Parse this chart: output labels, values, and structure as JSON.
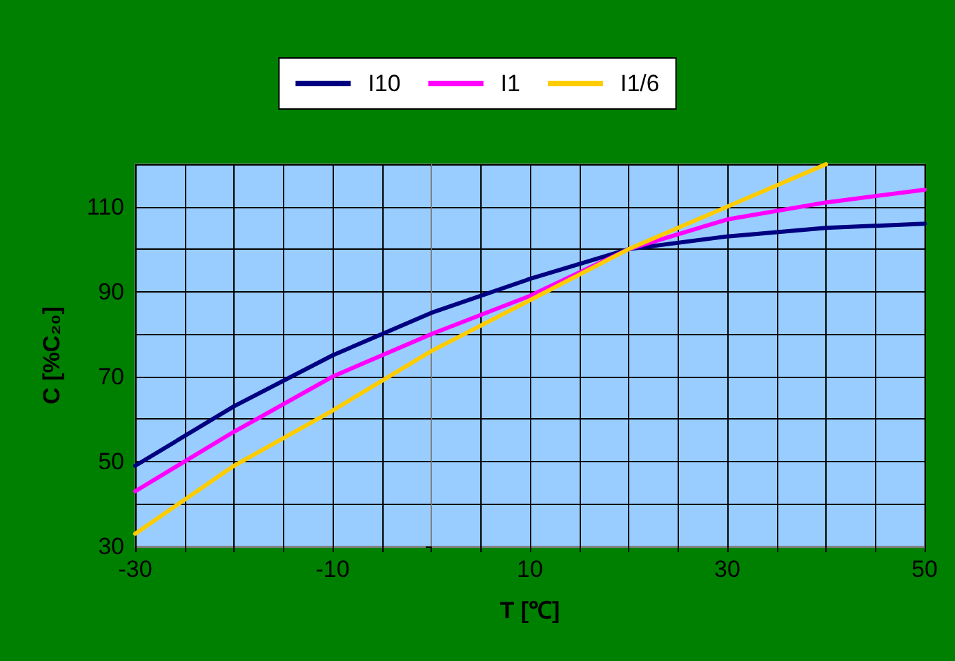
{
  "chart_data": {
    "type": "line",
    "xlabel": "T [℃]",
    "ylabel": "C [%C₂₀]",
    "x": [
      -30,
      -20,
      -10,
      0,
      10,
      20,
      30,
      40,
      50
    ],
    "series": [
      {
        "name": "I10",
        "color": "#000080",
        "values": [
          49,
          63,
          75,
          85,
          93,
          100,
          103,
          105,
          106
        ]
      },
      {
        "name": "I1",
        "color": "#ff00ff",
        "values": [
          43,
          57,
          70,
          80,
          89,
          100,
          107,
          111,
          114
        ]
      },
      {
        "name": "I1/6",
        "color": "#ffcc00",
        "values": [
          33,
          49,
          62,
          76,
          88,
          100,
          110,
          120,
          null
        ]
      }
    ],
    "xlim": [
      -30,
      50
    ],
    "xticks": [
      -30,
      {
        "value": -25,
        "label": null
      },
      {
        "value": -20,
        "label": null
      },
      {
        "value": -15,
        "label": null
      },
      -10,
      {
        "value": -5,
        "label": null
      },
      {
        "value": 0,
        "label": null
      },
      {
        "value": 5,
        "label": null
      },
      10,
      {
        "value": 15,
        "label": null
      },
      {
        "value": 20,
        "label": null
      },
      {
        "value": 25,
        "label": null
      },
      30,
      {
        "value": 35,
        "label": null
      },
      {
        "value": 40,
        "label": null
      },
      {
        "value": 45,
        "label": null
      },
      50
    ],
    "ylim": [
      30,
      120
    ],
    "yticks": [
      30,
      {
        "value": 40,
        "label": null
      },
      50,
      {
        "value": 60,
        "label": null
      },
      70,
      {
        "value": 80,
        "label": null
      },
      90,
      {
        "value": 100,
        "label": null
      },
      110,
      {
        "value": 120,
        "label": null
      }
    ],
    "grid": true,
    "legend": "top",
    "marker": "none",
    "line_style": "solid"
  }
}
